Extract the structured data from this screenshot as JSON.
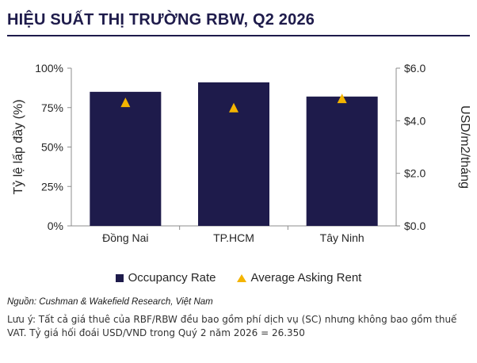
{
  "header": {
    "title": "HIỆU SUẤT THỊ TRƯỜNG RBW, Q2 2026"
  },
  "colors": {
    "bar": "#1e1b4b",
    "marker": "#f4b400",
    "accent": "#1e1b4b"
  },
  "chart_data": {
    "type": "bar",
    "title": "HIỆU SUẤT THỊ TRƯỜNG RBW, Q2 2026",
    "categories": [
      "Đồng Nai",
      "TP.HCM",
      "Tây Ninh"
    ],
    "series": [
      {
        "name": "Occupancy Rate",
        "type": "bar",
        "axis": "left",
        "values": [
          85,
          91,
          82
        ]
      },
      {
        "name": "Average Asking Rent",
        "type": "marker",
        "marker": "triangle",
        "axis": "right",
        "values": [
          4.7,
          4.5,
          4.85
        ]
      }
    ],
    "ylabel": "Tỷ lệ lấp đầy (%)",
    "ylim": [
      0,
      100
    ],
    "yticks": [
      "0%",
      "25%",
      "50%",
      "75%",
      "100%"
    ],
    "y2label": "USD/m2/tháng",
    "y2lim": [
      0,
      6
    ],
    "y2ticks": [
      "$0.0",
      "$2.0",
      "$4.0",
      "$6.0"
    ],
    "grid": false,
    "legend": "bottom"
  },
  "legend": {
    "bar_label": "Occupancy Rate",
    "marker_label": "Average Asking Rent"
  },
  "footer": {
    "source": "Nguồn: Cushman & Wakefield Research, Việt Nam",
    "note": "Lưu ý: Tất cả giá thuê của RBF/RBW đều bao gồm phí dịch vụ (SC) nhưng không bao gồm thuế VAT. Tỷ giá hối đoái USD/VND trong Quý 2 năm 2026 = 26.350"
  }
}
